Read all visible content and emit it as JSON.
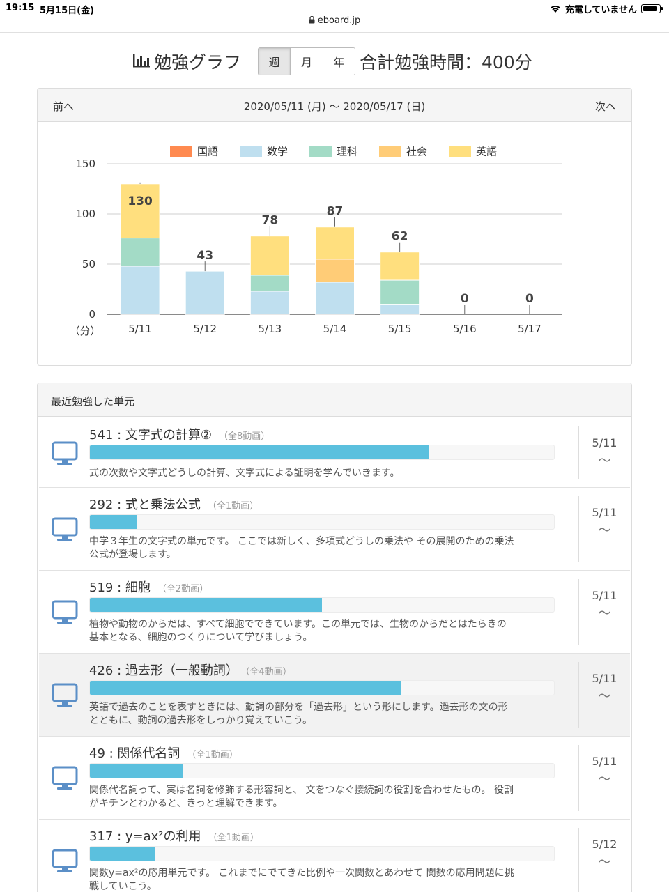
{
  "status": {
    "time": "19:15",
    "date": "5月15日(金)",
    "charging": "充電していません"
  },
  "browser": {
    "url": "eboard.jp"
  },
  "header": {
    "title": "勉強グラフ",
    "tabs": [
      {
        "label": "週",
        "active": true
      },
      {
        "label": "月",
        "active": false
      },
      {
        "label": "年",
        "active": false
      }
    ],
    "total": "合計勉強時間：400分"
  },
  "chart_nav": {
    "prev": "前へ",
    "range": "2020/05/11 (月) 〜 2020/05/17 (日)",
    "next": "次へ"
  },
  "chart_data": {
    "type": "bar",
    "stacked": true,
    "categories": [
      "5/11",
      "5/12",
      "5/13",
      "5/14",
      "5/15",
      "5/16",
      "5/17"
    ],
    "series": [
      {
        "name": "国語",
        "color": "#ff8a50",
        "values": [
          0,
          0,
          0,
          0,
          0,
          0,
          0
        ]
      },
      {
        "name": "数学",
        "color": "#bfdfef",
        "values": [
          48,
          43,
          23,
          32,
          10,
          0,
          0
        ]
      },
      {
        "name": "理科",
        "color": "#a3dbc6",
        "values": [
          28,
          0,
          16,
          0,
          24,
          0,
          0
        ]
      },
      {
        "name": "社会",
        "color": "#ffcc77",
        "values": [
          0,
          0,
          0,
          23,
          0,
          0,
          0
        ]
      },
      {
        "name": "英語",
        "color": "#ffdf7e",
        "values": [
          54,
          0,
          39,
          32,
          28,
          0,
          0
        ]
      }
    ],
    "totals": [
      "130",
      "43",
      "78",
      "87",
      "62",
      "0",
      "0"
    ],
    "ylim": [
      0,
      150
    ],
    "yticks": [
      "0",
      "50",
      "100",
      "150"
    ],
    "yunit": "（分）",
    "legend": "top",
    "grid": true
  },
  "recent": {
    "heading": "最近勉強した単元",
    "items": [
      {
        "title": "541 : 文字式の計算②",
        "count": "（全8動画）",
        "progress": 0.73,
        "desc": [
          "式の次数や文字式どうしの計算、文字式による証明を学んでいきます。"
        ],
        "date": "5/11",
        "tilde": "〜"
      },
      {
        "title": "292 : 式と乗法公式",
        "count": "（全1動画）",
        "progress": 0.1,
        "desc": [
          "中学３年生の文字式の単元です。 ここでは新しく、多項式どうしの乗法や その展開のための乗法",
          "公式が登場します。"
        ],
        "date": "5/11",
        "tilde": "〜"
      },
      {
        "title": "519 : 細胞",
        "count": "（全2動画）",
        "progress": 0.5,
        "desc": [
          "植物や動物のからだは、すべて細胞でできています。この単元では、生物のからだとはたらきの",
          "基本となる、細胞のつくりについて学びましょう。"
        ],
        "date": "5/11",
        "tilde": "〜"
      },
      {
        "title": "426 : 過去形（一般動詞）",
        "count": "（全4動画）",
        "progress": 0.67,
        "desc": [
          "英語で過去のことを表すときには、動詞の部分を「過去形」という形にします。過去形の文の形",
          "とともに、動詞の過去形をしっかり覚えていこう。"
        ],
        "date": "5/11",
        "tilde": "〜"
      },
      {
        "title": "49 : 関係代名詞",
        "count": "（全1動画）",
        "progress": 0.2,
        "desc": [
          "関係代名詞って、実は名詞を修飾する形容詞と、 文をつなぐ接続詞の役割を合わせたもの。 役割",
          "がキチンとわかると、きっと理解できます。"
        ],
        "date": "5/11",
        "tilde": "〜"
      },
      {
        "title": "317 : y=ax²の利用",
        "count": "（全1動画）",
        "progress": 0.14,
        "desc": [
          "関数y=ax²の応用単元です。 これまでにでてきた比例や一次関数とあわせて 関数の応用問題に挑",
          "戦していこう。"
        ],
        "date": "5/12",
        "tilde": "〜"
      }
    ]
  }
}
